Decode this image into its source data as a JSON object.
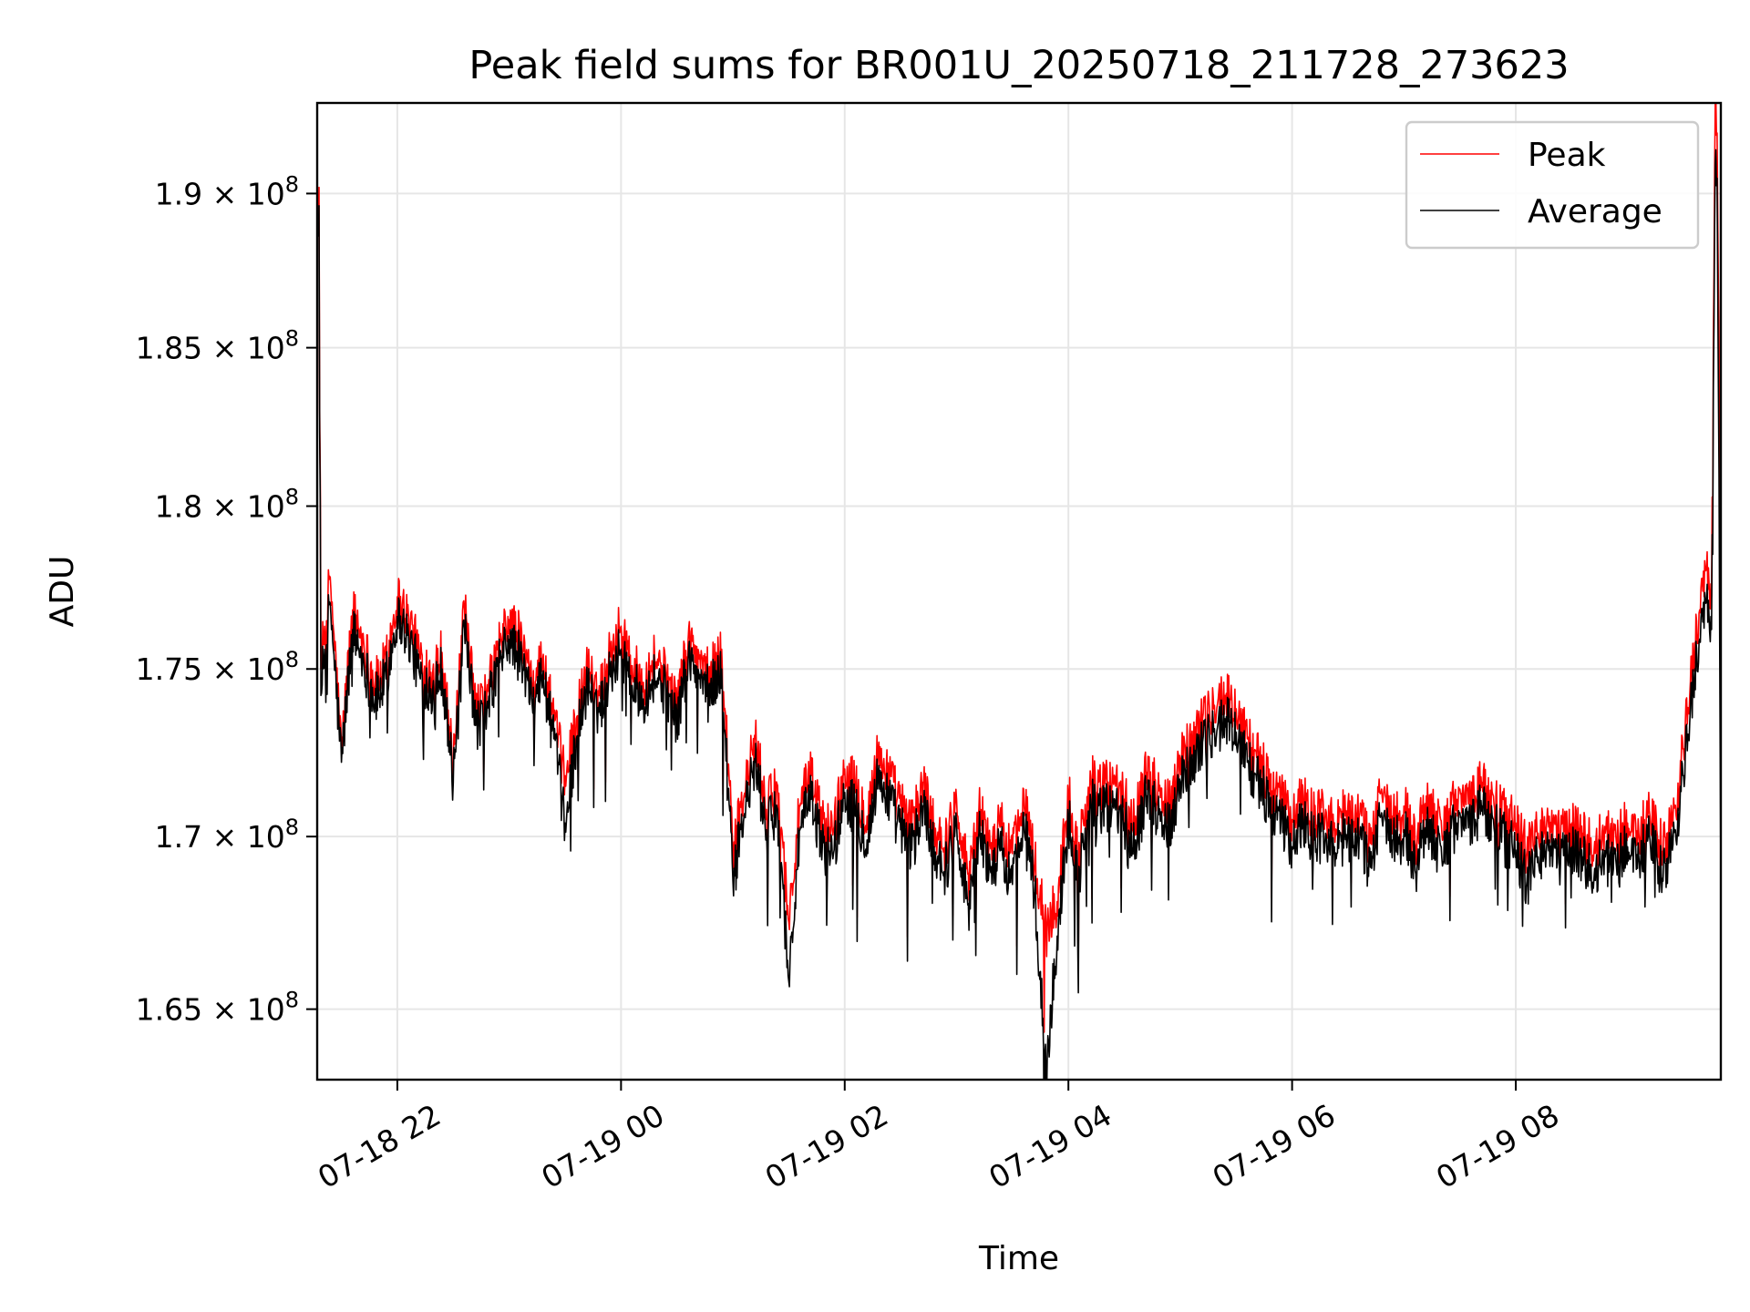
{
  "chart_data": {
    "type": "line",
    "title": "Peak field sums for BR001U_20250718_211728_273623",
    "xlabel": "Time",
    "ylabel": "ADU",
    "x_range": [
      "07-18 21:17",
      "07-19 09:50"
    ],
    "x_ticks": [
      "07-18 22",
      "07-19 00",
      "07-19 02",
      "07-19 04",
      "07-19 06",
      "07-19 08"
    ],
    "y_scale": "log",
    "ylim": [
      163000000,
      193000000
    ],
    "y_ticks": [
      {
        "value": 165000000,
        "mantissa": "1.65"
      },
      {
        "value": 170000000,
        "mantissa": "1.7"
      },
      {
        "value": 175000000,
        "mantissa": "1.75"
      },
      {
        "value": 180000000,
        "mantissa": "1.8"
      },
      {
        "value": 185000000,
        "mantissa": "1.85"
      },
      {
        "value": 190000000,
        "mantissa": "1.9"
      }
    ],
    "y_tick_suffix": "× 10",
    "y_tick_exponent": "8",
    "grid": true,
    "legend_position": "top-right",
    "series": [
      {
        "name": "Peak",
        "color": "#ff0000",
        "x": [
          "07-18 21:17",
          "07-18 21:18",
          "07-18 21:19",
          "07-18 21:21",
          "07-18 21:24",
          "07-18 21:30",
          "07-18 21:36",
          "07-18 21:42",
          "07-18 21:48",
          "07-18 21:54",
          "07-18 22:00",
          "07-18 22:06",
          "07-18 22:12",
          "07-18 22:18",
          "07-18 22:24",
          "07-18 22:30",
          "07-18 22:36",
          "07-18 22:42",
          "07-18 22:48",
          "07-18 22:54",
          "07-18 23:00",
          "07-18 23:06",
          "07-18 23:12",
          "07-18 23:18",
          "07-18 23:24",
          "07-18 23:30",
          "07-18 23:36",
          "07-18 23:42",
          "07-18 23:48",
          "07-18 23:54",
          "07-19 00:00",
          "07-19 00:06",
          "07-19 00:12",
          "07-19 00:18",
          "07-19 00:24",
          "07-19 00:30",
          "07-19 00:36",
          "07-19 00:42",
          "07-19 00:48",
          "07-19 00:54",
          "07-19 01:00",
          "07-19 01:06",
          "07-19 01:12",
          "07-19 01:18",
          "07-19 01:24",
          "07-19 01:30",
          "07-19 01:36",
          "07-19 01:42",
          "07-19 01:48",
          "07-19 01:54",
          "07-19 02:00",
          "07-19 02:06",
          "07-19 02:12",
          "07-19 02:18",
          "07-19 02:24",
          "07-19 02:30",
          "07-19 02:36",
          "07-19 02:42",
          "07-19 02:48",
          "07-19 02:54",
          "07-19 03:00",
          "07-19 03:06",
          "07-19 03:12",
          "07-19 03:18",
          "07-19 03:24",
          "07-19 03:30",
          "07-19 03:36",
          "07-19 03:42",
          "07-19 03:48",
          "07-19 03:54",
          "07-19 04:00",
          "07-19 04:06",
          "07-19 04:12",
          "07-19 04:18",
          "07-19 04:24",
          "07-19 04:30",
          "07-19 04:36",
          "07-19 04:42",
          "07-19 04:48",
          "07-19 04:54",
          "07-19 05:00",
          "07-19 05:06",
          "07-19 05:12",
          "07-19 05:18",
          "07-19 05:24",
          "07-19 05:30",
          "07-19 05:36",
          "07-19 05:42",
          "07-19 05:48",
          "07-19 05:54",
          "07-19 06:00",
          "07-19 06:06",
          "07-19 06:12",
          "07-19 06:18",
          "07-19 06:24",
          "07-19 06:30",
          "07-19 06:36",
          "07-19 06:42",
          "07-19 06:48",
          "07-19 06:54",
          "07-19 07:00",
          "07-19 07:06",
          "07-19 07:12",
          "07-19 07:18",
          "07-19 07:24",
          "07-19 07:30",
          "07-19 07:36",
          "07-19 07:42",
          "07-19 07:48",
          "07-19 07:54",
          "07-19 08:00",
          "07-19 08:06",
          "07-19 08:12",
          "07-19 08:18",
          "07-19 08:24",
          "07-19 08:30",
          "07-19 08:36",
          "07-19 08:42",
          "07-19 08:48",
          "07-19 08:54",
          "07-19 09:00",
          "07-19 09:06",
          "07-19 09:12",
          "07-19 09:18",
          "07-19 09:24",
          "07-19 09:30",
          "07-19 09:36",
          "07-19 09:42",
          "07-19 09:45",
          "07-19 09:47",
          "07-19 09:48",
          "07-19 09:49",
          "07-19 09:50"
        ],
        "values": [
          189500000,
          190200000,
          175000000,
          176300000,
          177800000,
          172500000,
          176800000,
          175800000,
          174500000,
          175200000,
          177200000,
          176600000,
          175400000,
          174900000,
          175500000,
          172000000,
          176800000,
          173800000,
          174200000,
          175600000,
          176500000,
          175900000,
          174600000,
          175300000,
          173400000,
          171800000,
          173500000,
          175100000,
          174200000,
          175500000,
          176300000,
          175100000,
          174600000,
          175400000,
          174800000,
          174000000,
          175900000,
          175300000,
          174900000,
          175600000,
          169500000,
          171200000,
          172900000,
          170800000,
          171500000,
          167500000,
          170900000,
          171800000,
          170400000,
          170200000,
          172000000,
          171400000,
          170600000,
          172500000,
          171800000,
          170900000,
          170300000,
          171600000,
          170400000,
          169700000,
          171100000,
          168900000,
          170800000,
          169800000,
          170300000,
          169500000,
          171400000,
          169200000,
          167200000,
          168100000,
          171200000,
          169700000,
          171800000,
          171400000,
          171600000,
          171100000,
          170600000,
          171900000,
          171400000,
          171000000,
          172300000,
          172900000,
          173500000,
          173800000,
          174200000,
          173800000,
          172900000,
          172300000,
          171600000,
          171100000,
          170500000,
          171200000,
          170600000,
          170800000,
          170200000,
          171000000,
          170600000,
          169800000,
          171400000,
          170600000,
          170900000,
          169800000,
          171200000,
          170400000,
          170600000,
          171400000,
          170900000,
          171600000,
          171200000,
          170600000,
          170400000,
          169600000,
          170100000,
          170600000,
          169900000,
          170400000,
          170100000,
          169600000,
          170100000,
          169800000,
          170400000,
          170100000,
          170600000,
          169700000,
          170300000,
          172600000,
          175800000,
          178000000,
          177200000,
          193000000,
          192000000,
          185000000,
          171000000
        ]
      },
      {
        "name": "Average",
        "color": "#000000",
        "x": [
          "07-18 21:17",
          "07-18 21:18",
          "07-18 21:19",
          "07-18 21:21",
          "07-18 21:24",
          "07-18 21:30",
          "07-18 21:36",
          "07-18 21:42",
          "07-18 21:48",
          "07-18 21:54",
          "07-18 22:00",
          "07-18 22:06",
          "07-18 22:12",
          "07-18 22:18",
          "07-18 22:24",
          "07-18 22:30",
          "07-18 22:36",
          "07-18 22:42",
          "07-18 22:48",
          "07-18 22:54",
          "07-18 23:00",
          "07-18 23:06",
          "07-18 23:12",
          "07-18 23:18",
          "07-18 23:24",
          "07-18 23:30",
          "07-18 23:36",
          "07-18 23:42",
          "07-18 23:48",
          "07-18 23:54",
          "07-19 00:00",
          "07-19 00:06",
          "07-19 00:12",
          "07-19 00:18",
          "07-19 00:24",
          "07-19 00:30",
          "07-19 00:36",
          "07-19 00:42",
          "07-19 00:48",
          "07-19 00:54",
          "07-19 01:00",
          "07-19 01:06",
          "07-19 01:12",
          "07-19 01:18",
          "07-19 01:24",
          "07-19 01:30",
          "07-19 01:36",
          "07-19 01:42",
          "07-19 01:48",
          "07-19 01:54",
          "07-19 02:00",
          "07-19 02:06",
          "07-19 02:12",
          "07-19 02:18",
          "07-19 02:24",
          "07-19 02:30",
          "07-19 02:36",
          "07-19 02:42",
          "07-19 02:48",
          "07-19 02:54",
          "07-19 03:00",
          "07-19 03:06",
          "07-19 03:12",
          "07-19 03:18",
          "07-19 03:24",
          "07-19 03:30",
          "07-19 03:36",
          "07-19 03:42",
          "07-19 03:48",
          "07-19 03:54",
          "07-19 04:00",
          "07-19 04:06",
          "07-19 04:12",
          "07-19 04:18",
          "07-19 04:24",
          "07-19 04:30",
          "07-19 04:36",
          "07-19 04:42",
          "07-19 04:48",
          "07-19 04:54",
          "07-19 05:00",
          "07-19 05:06",
          "07-19 05:12",
          "07-19 05:18",
          "07-19 05:24",
          "07-19 05:30",
          "07-19 05:36",
          "07-19 05:42",
          "07-19 05:48",
          "07-19 05:54",
          "07-19 06:00",
          "07-19 06:06",
          "07-19 06:12",
          "07-19 06:18",
          "07-19 06:24",
          "07-19 06:30",
          "07-19 06:36",
          "07-19 06:42",
          "07-19 06:48",
          "07-19 06:54",
          "07-19 07:00",
          "07-19 07:06",
          "07-19 07:12",
          "07-19 07:18",
          "07-19 07:24",
          "07-19 07:30",
          "07-19 07:36",
          "07-19 07:42",
          "07-19 07:48",
          "07-19 07:54",
          "07-19 08:00",
          "07-19 08:06",
          "07-19 08:12",
          "07-19 08:18",
          "07-19 08:24",
          "07-19 08:30",
          "07-19 08:36",
          "07-19 08:42",
          "07-19 08:48",
          "07-19 08:54",
          "07-19 09:00",
          "07-19 09:06",
          "07-19 09:12",
          "07-19 09:18",
          "07-19 09:24",
          "07-19 09:30",
          "07-19 09:36",
          "07-19 09:42",
          "07-19 09:45",
          "07-19 09:47",
          "07-19 09:48",
          "07-19 09:49",
          "07-19 09:50"
        ],
        "values": [
          188500000,
          189600000,
          174200000,
          175600000,
          177000000,
          172200000,
          176200000,
          175200000,
          174000000,
          174700000,
          176600000,
          176000000,
          174800000,
          174400000,
          175000000,
          171600000,
          176200000,
          173300000,
          173700000,
          175100000,
          175900000,
          175300000,
          174100000,
          174800000,
          172900000,
          170400000,
          172900000,
          174500000,
          173700000,
          174900000,
          175600000,
          174500000,
          174100000,
          174800000,
          174300000,
          173500000,
          175300000,
          174700000,
          174400000,
          175000000,
          168700000,
          170600000,
          172200000,
          170200000,
          170800000,
          165800000,
          170200000,
          171100000,
          169700000,
          169500000,
          171300000,
          170700000,
          169900000,
          171800000,
          171100000,
          170200000,
          169600000,
          170900000,
          169700000,
          169000000,
          170400000,
          168000000,
          170100000,
          169100000,
          169600000,
          168600000,
          170700000,
          168400000,
          163000000,
          167100000,
          170500000,
          169000000,
          171100000,
          170700000,
          170900000,
          170400000,
          169900000,
          171200000,
          170700000,
          170300000,
          171600000,
          172200000,
          172800000,
          173100000,
          173500000,
          173100000,
          172200000,
          171600000,
          170900000,
          170400000,
          169700000,
          170500000,
          169900000,
          170100000,
          169500000,
          170300000,
          169900000,
          169100000,
          170700000,
          169900000,
          170200000,
          169000000,
          170500000,
          169600000,
          169900000,
          170700000,
          170200000,
          170900000,
          170500000,
          169900000,
          169600000,
          168700000,
          169400000,
          169900000,
          169200000,
          169700000,
          169400000,
          168800000,
          169400000,
          169100000,
          169700000,
          169400000,
          169900000,
          168900000,
          169600000,
          171800000,
          175000000,
          177000000,
          176200000,
          191000000,
          190500000,
          181000000,
          168700000
        ]
      }
    ]
  }
}
